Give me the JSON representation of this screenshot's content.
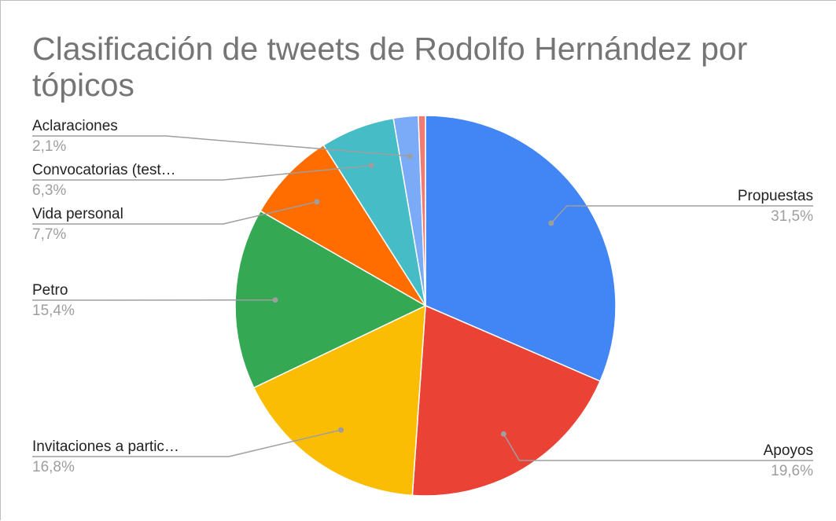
{
  "chart_data": {
    "type": "pie",
    "title": "Clasificación de tweets de Rodolfo Hernández por tópicos",
    "start_angle_deg": 0,
    "direction": "clockwise",
    "slices": [
      {
        "label": "Propuestas",
        "value": 31.5,
        "value_label": "31,5%",
        "color": "#4285f4"
      },
      {
        "label": "Apoyos",
        "value": 19.6,
        "value_label": "19,6%",
        "color": "#ea4335"
      },
      {
        "label": "Invitaciones a partic…",
        "value": 16.8,
        "value_label": "16,8%",
        "color": "#fbbc04"
      },
      {
        "label": "Petro",
        "value": 15.4,
        "value_label": "15,4%",
        "color": "#34a853"
      },
      {
        "label": "Vida personal",
        "value": 7.7,
        "value_label": "7,7%",
        "color": "#ff6d01"
      },
      {
        "label": "Convocatorias (test…",
        "value": 6.3,
        "value_label": "6,3%",
        "color": "#46bdc6"
      },
      {
        "label": "Aclaraciones",
        "value": 2.1,
        "value_label": "2,1%",
        "color": "#7baaf7"
      },
      {
        "label": "",
        "value": 0.6,
        "value_label": "",
        "color": "#f07b72"
      }
    ]
  }
}
